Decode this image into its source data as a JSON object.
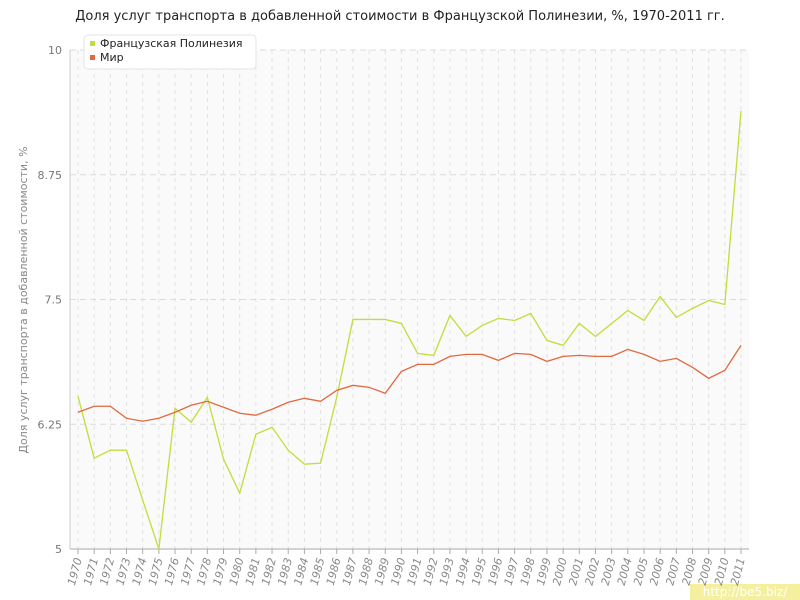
{
  "chart_data": {
    "type": "line",
    "title": "Доля услуг транспорта в добавленной стоимости в Французской Полинезии, %, 1970-2011 гг.",
    "y_label": "Доля услуг транспорта в добавленной стоимости, %",
    "watermark": "http://be5.biz/",
    "categories": [
      "1970",
      "1971",
      "1972",
      "1973",
      "1974",
      "1975",
      "1976",
      "1977",
      "1978",
      "1979",
      "1980",
      "1981",
      "1982",
      "1983",
      "1984",
      "1985",
      "1986",
      "1987",
      "1988",
      "1989",
      "1990",
      "1991",
      "1992",
      "1993",
      "1994",
      "1995",
      "1996",
      "1997",
      "1998",
      "1999",
      "2000",
      "2001",
      "2002",
      "2003",
      "2004",
      "2005",
      "2006",
      "2007",
      "2008",
      "2009",
      "2010",
      "2011"
    ],
    "series": [
      {
        "name": "Французская Полинезия",
        "color": "#c5dc3a",
        "values": [
          6.53,
          5.91,
          5.99,
          5.99,
          5.49,
          5.0,
          6.41,
          6.27,
          6.52,
          5.9,
          5.56,
          6.15,
          6.22,
          5.99,
          5.85,
          5.86,
          6.52,
          7.3,
          7.3,
          7.3,
          7.26,
          6.96,
          6.94,
          7.34,
          7.13,
          7.24,
          7.31,
          7.29,
          7.36,
          7.09,
          7.04,
          7.26,
          7.13,
          7.26,
          7.39,
          7.29,
          7.53,
          7.32,
          7.41,
          7.49,
          7.45,
          9.39
        ]
      },
      {
        "name": "Мир",
        "color": "#e0693f",
        "values": [
          6.37,
          6.43,
          6.43,
          6.31,
          6.28,
          6.31,
          6.37,
          6.44,
          6.48,
          6.42,
          6.36,
          6.34,
          6.4,
          6.47,
          6.51,
          6.48,
          6.59,
          6.64,
          6.62,
          6.56,
          6.78,
          6.85,
          6.85,
          6.93,
          6.95,
          6.95,
          6.89,
          6.96,
          6.95,
          6.88,
          6.93,
          6.94,
          6.93,
          6.93,
          7.0,
          6.95,
          6.88,
          6.91,
          6.82,
          6.71,
          6.79,
          7.04
        ]
      }
    ],
    "ylim": [
      5,
      10
    ],
    "yticks": [
      5,
      6.25,
      7.5,
      8.75,
      10
    ],
    "grid": true,
    "legend": "top-left"
  }
}
